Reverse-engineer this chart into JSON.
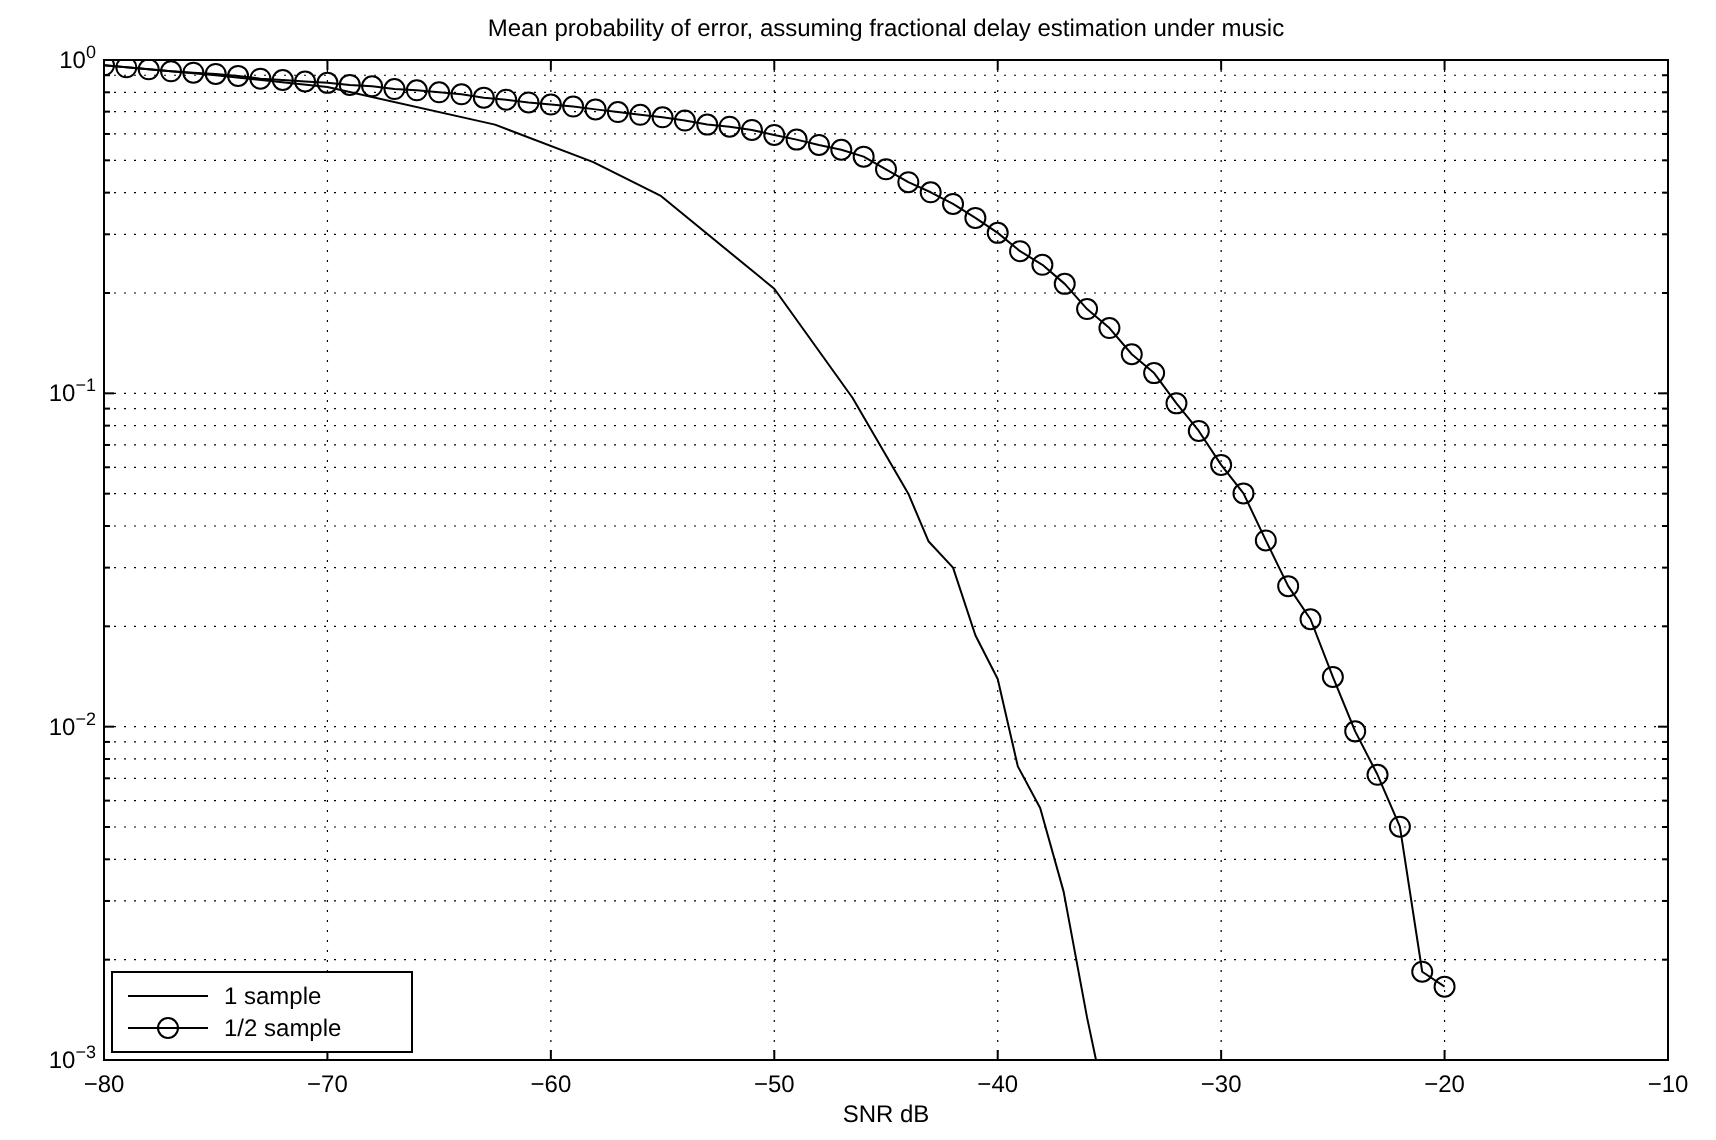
{
  "chart_data": {
    "type": "line",
    "title": "Mean probability of error, assuming fractional delay estimation under music",
    "xlabel": "SNR dB",
    "log": "y",
    "grid": true,
    "legend": "bottom left",
    "xlim": [
      -80,
      -10
    ],
    "xticks": [
      {
        "value": -80,
        "label": "−80"
      },
      {
        "value": -70,
        "label": "−70"
      },
      {
        "value": -60,
        "label": "−60"
      },
      {
        "value": -50,
        "label": "−50"
      },
      {
        "value": -40,
        "label": "−40"
      },
      {
        "value": -30,
        "label": "−30"
      },
      {
        "value": -20,
        "label": "−20"
      },
      {
        "value": -10,
        "label": "−10"
      }
    ],
    "ylim": [
      0.001,
      1
    ],
    "yticks": [
      {
        "value": 0.001,
        "label": "10$^{−3}$"
      },
      {
        "value": 0.01,
        "label": "10$^{−2}$"
      },
      {
        "value": 0.1,
        "label": "10$^{−1}$"
      },
      {
        "value": 1,
        "label": "10$^{0}$"
      }
    ],
    "series": [
      {
        "name": "1 sample",
        "color": "#000000",
        "marker": "none",
        "x": [
          -80,
          -75,
          -70,
          -62.5,
          -58.1,
          -55.1,
          -50,
          -46.5,
          -44,
          -43.1,
          -42,
          -41,
          -40,
          -39.1,
          -38.1,
          -37.05,
          -36,
          -35.6
        ],
        "values": [
          0.964,
          0.9,
          0.83,
          0.64,
          0.494,
          0.392,
          0.206,
          0.097,
          0.05,
          0.036,
          0.03,
          0.0188,
          0.0139,
          0.0076,
          0.0057,
          0.0032,
          0.00134,
          0.001
        ]
      },
      {
        "name": "1/2 sample",
        "color": "#000000",
        "marker": "circle",
        "x": [
          -80,
          -79,
          -78,
          -77,
          -76,
          -75,
          -74,
          -73,
          -72,
          -71,
          -70,
          -69,
          -68,
          -67,
          -66,
          -65,
          -64,
          -63,
          -62,
          -61,
          -60,
          -59,
          -58,
          -57,
          -56,
          -55,
          -54,
          -53,
          -52,
          -51,
          -50,
          -49,
          -48,
          -47,
          -46,
          -45,
          -44,
          -43,
          -42,
          -41,
          -40,
          -39,
          -38,
          -37,
          -36,
          -35,
          -34,
          -33,
          -32,
          -31,
          -30,
          -29,
          -28,
          -27,
          -26,
          -25,
          -24,
          -23,
          -22,
          -21,
          -20
        ],
        "values": [
          0.964,
          0.951,
          0.938,
          0.925,
          0.916,
          0.908,
          0.896,
          0.879,
          0.871,
          0.862,
          0.854,
          0.842,
          0.834,
          0.818,
          0.811,
          0.8,
          0.789,
          0.771,
          0.76,
          0.746,
          0.735,
          0.725,
          0.711,
          0.698,
          0.685,
          0.673,
          0.658,
          0.64,
          0.631,
          0.617,
          0.596,
          0.577,
          0.556,
          0.538,
          0.513,
          0.47,
          0.43,
          0.401,
          0.37,
          0.336,
          0.303,
          0.267,
          0.243,
          0.213,
          0.179,
          0.157,
          0.131,
          0.115,
          0.0933,
          0.0771,
          0.061,
          0.0501,
          0.0362,
          0.0264,
          0.021,
          0.0141,
          0.00968,
          0.00717,
          0.00501,
          0.00184,
          0.00166
        ]
      }
    ]
  }
}
